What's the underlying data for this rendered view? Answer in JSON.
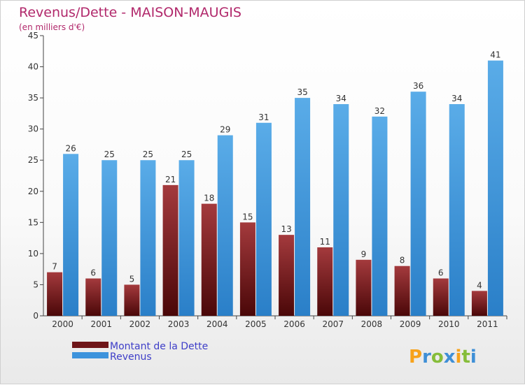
{
  "chart_data": {
    "type": "bar",
    "title": "Revenus/Dette - MAISON-MAUGIS",
    "subtitle": "(en milliers d'€)",
    "categories": [
      "2000",
      "2001",
      "2002",
      "2003",
      "2004",
      "2005",
      "2006",
      "2007",
      "2008",
      "2009",
      "2010",
      "2011"
    ],
    "series": [
      {
        "name": "Montant de la Dette",
        "color": "#6e1518",
        "values": [
          7,
          6,
          5,
          21,
          18,
          15,
          13,
          11,
          9,
          8,
          6,
          4
        ]
      },
      {
        "name": "Revenus",
        "color": "#3d93dc",
        "values": [
          26,
          25,
          25,
          25,
          29,
          31,
          35,
          34,
          32,
          36,
          34,
          41
        ]
      }
    ],
    "ylim": [
      0,
      45
    ],
    "yticks": [
      0,
      5,
      10,
      15,
      20,
      25,
      30,
      35,
      40,
      45
    ],
    "xlabel": "",
    "ylabel": "",
    "grid": false,
    "legend": "bottom-left"
  },
  "brand": {
    "letters": [
      "P",
      "r",
      "o",
      "x",
      "i",
      "t",
      "i"
    ],
    "colors": [
      "#f7a21b",
      "#3f8fd6",
      "#86bd3a",
      "#3f8fd6",
      "#f7a21b",
      "#86bd3a",
      "#3f8fd6"
    ]
  }
}
